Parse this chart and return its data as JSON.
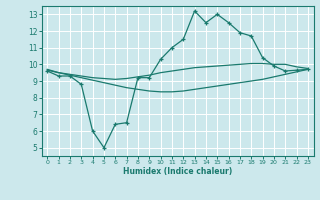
{
  "xlabel": "Humidex (Indice chaleur)",
  "bg_color": "#cce8ec",
  "grid_color": "#ffffff",
  "line_color": "#1a7a6e",
  "xlim": [
    -0.5,
    23.5
  ],
  "ylim": [
    4.5,
    13.5
  ],
  "xticks": [
    0,
    1,
    2,
    3,
    4,
    5,
    6,
    7,
    8,
    9,
    10,
    11,
    12,
    13,
    14,
    15,
    16,
    17,
    18,
    19,
    20,
    21,
    22,
    23
  ],
  "yticks": [
    5,
    6,
    7,
    8,
    9,
    10,
    11,
    12,
    13
  ],
  "line1_x": [
    0,
    1,
    2,
    3,
    4,
    5,
    6,
    7,
    8,
    9,
    10,
    11,
    12,
    13,
    14,
    15,
    16,
    17,
    18,
    19,
    20,
    21,
    22,
    23
  ],
  "line1_y": [
    9.6,
    9.3,
    9.3,
    8.8,
    6.0,
    5.0,
    6.4,
    6.5,
    9.2,
    9.2,
    10.3,
    11.0,
    11.5,
    13.2,
    12.5,
    13.0,
    12.5,
    11.9,
    11.7,
    10.4,
    9.9,
    9.6,
    9.65,
    9.7
  ],
  "line2_x": [
    0,
    1,
    2,
    3,
    4,
    5,
    6,
    7,
    8,
    9,
    10,
    11,
    12,
    13,
    14,
    15,
    16,
    17,
    18,
    19,
    20,
    21,
    22,
    23
  ],
  "line2_y": [
    9.7,
    9.5,
    9.4,
    9.3,
    9.2,
    9.15,
    9.1,
    9.15,
    9.25,
    9.35,
    9.5,
    9.6,
    9.7,
    9.8,
    9.85,
    9.9,
    9.95,
    10.0,
    10.05,
    10.05,
    10.0,
    10.0,
    9.85,
    9.75
  ],
  "line3_x": [
    0,
    1,
    2,
    3,
    4,
    5,
    6,
    7,
    8,
    9,
    10,
    11,
    12,
    13,
    14,
    15,
    16,
    17,
    18,
    19,
    20,
    21,
    22,
    23
  ],
  "line3_y": [
    9.65,
    9.5,
    9.35,
    9.2,
    9.05,
    8.9,
    8.75,
    8.6,
    8.5,
    8.4,
    8.35,
    8.35,
    8.4,
    8.5,
    8.6,
    8.7,
    8.8,
    8.9,
    9.0,
    9.1,
    9.25,
    9.4,
    9.55,
    9.7
  ]
}
